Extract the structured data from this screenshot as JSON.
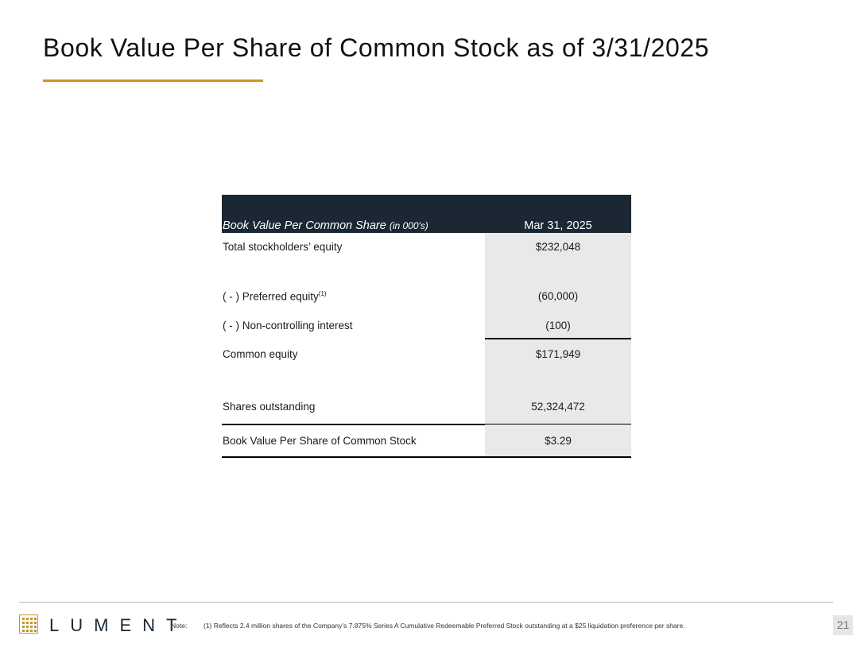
{
  "slide": {
    "title": "Book Value Per Share of Common Stock as of 3/31/2025",
    "page_number": "21"
  },
  "table": {
    "header_label": "Book Value Per Common Share",
    "header_label_sub": "(in 000's)",
    "header_col": "Mar 31, 2025",
    "rows": [
      {
        "label": "Total stockholders’ equity",
        "value": "$232,048"
      },
      {
        "label": "( - ) Preferred equity",
        "sup": "(1)",
        "value": "(60,000)"
      },
      {
        "label": "( - ) Non-controlling interest",
        "value": "(100)"
      },
      {
        "label": "Common equity",
        "value": "$171,949"
      },
      {
        "label": "Shares outstanding",
        "value": "52,324,472"
      },
      {
        "label": "Book Value Per Share of Common Stock",
        "value": "$3.29"
      }
    ]
  },
  "footer": {
    "logo_text": "LUMENT",
    "note_label": "Note:",
    "note_text": "(1) Reflects 2.4 million shares of the Company’s 7.875% Series A Cumulative Redeemable Preferred Stock outstanding at a $25 liquidation preference per share."
  },
  "colors": {
    "accent": "#c8962a",
    "header_bg": "#1b2833",
    "value_bg": "#e9e9e9"
  }
}
